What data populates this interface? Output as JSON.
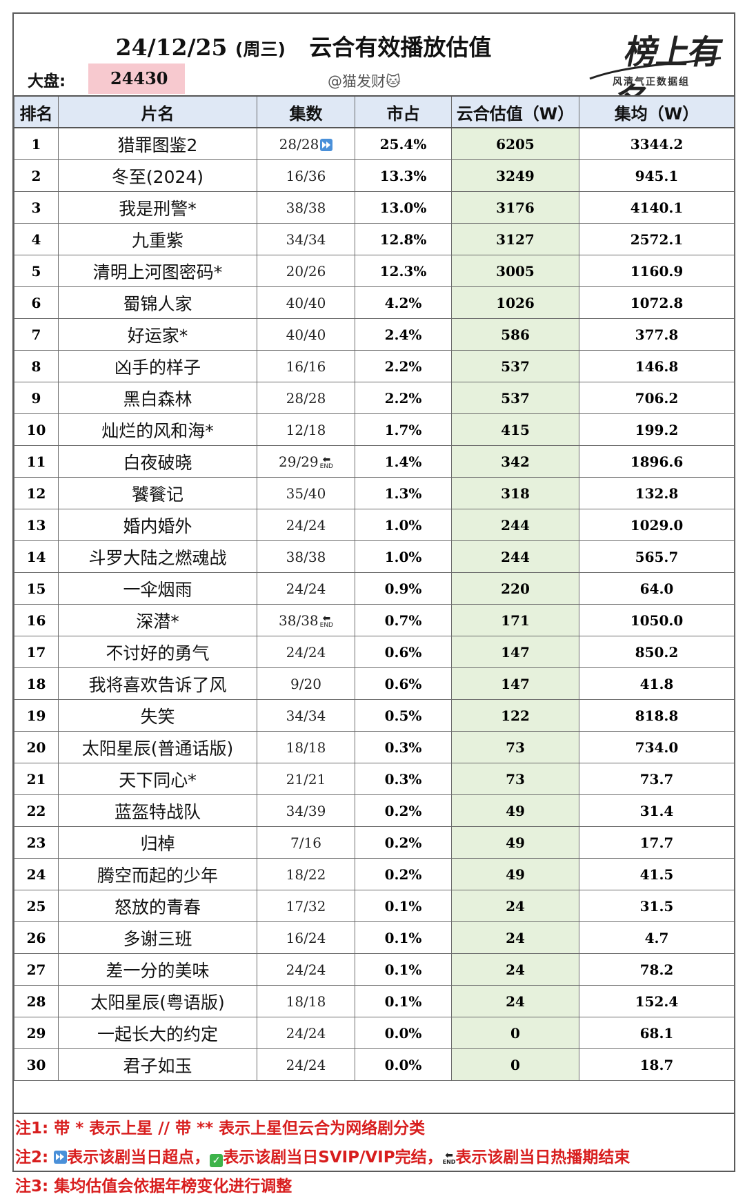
{
  "header": {
    "date": "24/12/25",
    "weekday": "(周三)",
    "title": "云合有效播放估值",
    "dapan_label": "大盘:",
    "dapan_value": "24430",
    "author": "@猫发财🐱",
    "logo_text": "榜上有名",
    "logo_sub": "风清气正数据组"
  },
  "table": {
    "columns": [
      "排名",
      "片名",
      "集数",
      "市占",
      "云合估值（W）",
      "集均（W）"
    ],
    "rows": [
      {
        "rank": "1",
        "name": "猎罪图鉴2",
        "episodes": "28/28",
        "mark": "play",
        "share": "25.4%",
        "value": "6205",
        "avg": "3344.2"
      },
      {
        "rank": "2",
        "name": "冬至(2024)",
        "episodes": "16/36",
        "mark": "",
        "share": "13.3%",
        "value": "3249",
        "avg": "945.1"
      },
      {
        "rank": "3",
        "name": "我是刑警*",
        "episodes": "38/38",
        "mark": "",
        "share": "13.0%",
        "value": "3176",
        "avg": "4140.1"
      },
      {
        "rank": "4",
        "name": "九重紫",
        "episodes": "34/34",
        "mark": "",
        "share": "12.8%",
        "value": "3127",
        "avg": "2572.1"
      },
      {
        "rank": "5",
        "name": "清明上河图密码*",
        "episodes": "20/26",
        "mark": "",
        "share": "12.3%",
        "value": "3005",
        "avg": "1160.9"
      },
      {
        "rank": "6",
        "name": "蜀锦人家",
        "episodes": "40/40",
        "mark": "",
        "share": "4.2%",
        "value": "1026",
        "avg": "1072.8"
      },
      {
        "rank": "7",
        "name": "好运家*",
        "episodes": "40/40",
        "mark": "",
        "share": "2.4%",
        "value": "586",
        "avg": "377.8"
      },
      {
        "rank": "8",
        "name": "凶手的样子",
        "episodes": "16/16",
        "mark": "",
        "share": "2.2%",
        "value": "537",
        "avg": "146.8"
      },
      {
        "rank": "9",
        "name": "黑白森林",
        "episodes": "28/28",
        "mark": "",
        "share": "2.2%",
        "value": "537",
        "avg": "706.2"
      },
      {
        "rank": "10",
        "name": "灿烂的风和海*",
        "episodes": "12/18",
        "mark": "",
        "share": "1.7%",
        "value": "415",
        "avg": "199.2"
      },
      {
        "rank": "11",
        "name": "白夜破晓",
        "episodes": "29/29",
        "mark": "end",
        "share": "1.4%",
        "value": "342",
        "avg": "1896.6"
      },
      {
        "rank": "12",
        "name": "饕餮记",
        "episodes": "35/40",
        "mark": "",
        "share": "1.3%",
        "value": "318",
        "avg": "132.8"
      },
      {
        "rank": "13",
        "name": "婚内婚外",
        "episodes": "24/24",
        "mark": "",
        "share": "1.0%",
        "value": "244",
        "avg": "1029.0"
      },
      {
        "rank": "14",
        "name": "斗罗大陆之燃魂战",
        "episodes": "38/38",
        "mark": "",
        "share": "1.0%",
        "value": "244",
        "avg": "565.7"
      },
      {
        "rank": "15",
        "name": "一伞烟雨",
        "episodes": "24/24",
        "mark": "",
        "share": "0.9%",
        "value": "220",
        "avg": "64.0"
      },
      {
        "rank": "16",
        "name": "深潜*",
        "episodes": "38/38",
        "mark": "end",
        "share": "0.7%",
        "value": "171",
        "avg": "1050.0"
      },
      {
        "rank": "17",
        "name": "不讨好的勇气",
        "episodes": "24/24",
        "mark": "",
        "share": "0.6%",
        "value": "147",
        "avg": "850.2"
      },
      {
        "rank": "18",
        "name": "我将喜欢告诉了风",
        "episodes": "9/20",
        "mark": "",
        "share": "0.6%",
        "value": "147",
        "avg": "41.8"
      },
      {
        "rank": "19",
        "name": "失笑",
        "episodes": "34/34",
        "mark": "",
        "share": "0.5%",
        "value": "122",
        "avg": "818.8"
      },
      {
        "rank": "20",
        "name": "太阳星辰(普通话版)",
        "episodes": "18/18",
        "mark": "",
        "share": "0.3%",
        "value": "73",
        "avg": "734.0"
      },
      {
        "rank": "21",
        "name": "天下同心*",
        "episodes": "21/21",
        "mark": "",
        "share": "0.3%",
        "value": "73",
        "avg": "73.7"
      },
      {
        "rank": "22",
        "name": "蓝盔特战队",
        "episodes": "34/39",
        "mark": "",
        "share": "0.2%",
        "value": "49",
        "avg": "31.4"
      },
      {
        "rank": "23",
        "name": "归棹",
        "episodes": "7/16",
        "mark": "",
        "share": "0.2%",
        "value": "49",
        "avg": "17.7"
      },
      {
        "rank": "24",
        "name": "腾空而起的少年",
        "episodes": "18/22",
        "mark": "",
        "share": "0.2%",
        "value": "49",
        "avg": "41.5"
      },
      {
        "rank": "25",
        "name": "怒放的青春",
        "episodes": "17/32",
        "mark": "",
        "share": "0.1%",
        "value": "24",
        "avg": "31.5"
      },
      {
        "rank": "26",
        "name": "多谢三班",
        "episodes": "16/24",
        "mark": "",
        "share": "0.1%",
        "value": "24",
        "avg": "4.7"
      },
      {
        "rank": "27",
        "name": "差一分的美味",
        "episodes": "24/24",
        "mark": "",
        "share": "0.1%",
        "value": "24",
        "avg": "78.2"
      },
      {
        "rank": "28",
        "name": "太阳星辰(粤语版)",
        "episodes": "18/18",
        "mark": "",
        "share": "0.1%",
        "value": "24",
        "avg": "152.4"
      },
      {
        "rank": "29",
        "name": "一起长大的约定",
        "episodes": "24/24",
        "mark": "",
        "share": "0.0%",
        "value": "0",
        "avg": "68.1"
      },
      {
        "rank": "30",
        "name": "君子如玉",
        "episodes": "24/24",
        "mark": "",
        "share": "0.0%",
        "value": "0",
        "avg": "18.7"
      }
    ]
  },
  "notes": {
    "note1_label": "注1:",
    "note1_text": "带 * 表示上星 // 带 ** 表示上星但云合为网络剧分类",
    "note2_label": "注2:",
    "note2_part1": "表示该剧当日超点，",
    "note2_part2": "表示该剧当日SVIP/VIP完结，",
    "note2_part3": "表示该剧当日热播期结束",
    "note3_label": "注3:",
    "note3_text": "集均估值会依据年榜变化进行调整",
    "end_text": "END"
  },
  "colors": {
    "header_bg": "#dfe8f5",
    "value_col_bg": "#e6f1dc",
    "dapan_bg": "#f7c9cf",
    "note_red": "#d81e1e"
  }
}
